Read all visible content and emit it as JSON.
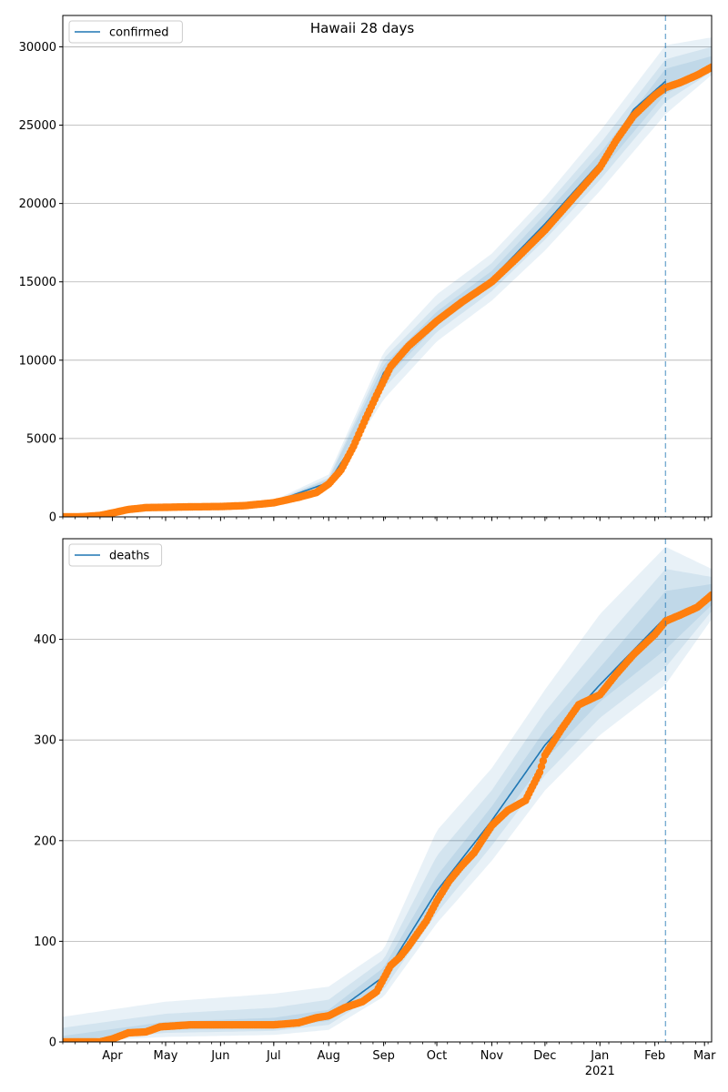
{
  "figure": {
    "title": "Hawaii 28 days"
  },
  "x_axis": {
    "start": "2020-03-04",
    "end": "2021-03-05",
    "ticks": [
      {
        "date": "2020-04-01",
        "label": "Apr"
      },
      {
        "date": "2020-05-01",
        "label": "May"
      },
      {
        "date": "2020-06-01",
        "label": "Jun"
      },
      {
        "date": "2020-07-01",
        "label": "Jul"
      },
      {
        "date": "2020-08-01",
        "label": "Aug"
      },
      {
        "date": "2020-09-01",
        "label": "Sep"
      },
      {
        "date": "2020-10-01",
        "label": "Oct"
      },
      {
        "date": "2020-11-01",
        "label": "Nov"
      },
      {
        "date": "2020-12-01",
        "label": "Dec"
      },
      {
        "date": "2021-01-01",
        "label": "Jan",
        "sublabel": "2021"
      },
      {
        "date": "2021-02-01",
        "label": "Feb"
      },
      {
        "date": "2021-03-01",
        "label": "Mar"
      }
    ]
  },
  "colors": {
    "model_line": "#1f77b4",
    "observed": "#ff7f0e",
    "band": "#1f77b4",
    "grid": "#b0b0b0",
    "forecast_line": "#1f77b4"
  },
  "chart_data": [
    {
      "type": "line",
      "legend": "confirmed",
      "legend_position": "top-left",
      "grid": "horizontal",
      "ylim": [
        0,
        32000
      ],
      "yticks": [
        0,
        5000,
        10000,
        15000,
        20000,
        25000,
        30000
      ],
      "forecast_start": "2021-02-07",
      "observed": [
        [
          "2020-03-04",
          0
        ],
        [
          "2020-03-15",
          10
        ],
        [
          "2020-03-25",
          90
        ],
        [
          "2020-04-01",
          250
        ],
        [
          "2020-04-10",
          470
        ],
        [
          "2020-04-20",
          590
        ],
        [
          "2020-05-01",
          610
        ],
        [
          "2020-05-15",
          640
        ],
        [
          "2020-06-01",
          660
        ],
        [
          "2020-06-15",
          720
        ],
        [
          "2020-07-01",
          900
        ],
        [
          "2020-07-15",
          1250
        ],
        [
          "2020-07-25",
          1550
        ],
        [
          "2020-08-01",
          2100
        ],
        [
          "2020-08-08",
          3000
        ],
        [
          "2020-08-15",
          4500
        ],
        [
          "2020-08-22",
          6300
        ],
        [
          "2020-08-29",
          8000
        ],
        [
          "2020-09-05",
          9600
        ],
        [
          "2020-09-15",
          10900
        ],
        [
          "2020-10-01",
          12500
        ],
        [
          "2020-10-15",
          13700
        ],
        [
          "2020-11-01",
          15000
        ],
        [
          "2020-11-15",
          16500
        ],
        [
          "2020-12-01",
          18300
        ],
        [
          "2020-12-15",
          20100
        ],
        [
          "2021-01-01",
          22300
        ],
        [
          "2021-01-10",
          24000
        ],
        [
          "2021-01-20",
          25600
        ],
        [
          "2021-02-01",
          26900
        ],
        [
          "2021-02-07",
          27400
        ],
        [
          "2021-02-15",
          27700
        ],
        [
          "2021-02-25",
          28200
        ],
        [
          "2021-03-05",
          28700
        ]
      ],
      "model": [
        [
          "2020-03-04",
          0
        ],
        [
          "2020-04-01",
          200
        ],
        [
          "2020-05-01",
          620
        ],
        [
          "2020-06-01",
          670
        ],
        [
          "2020-07-01",
          950
        ],
        [
          "2020-08-01",
          2200
        ],
        [
          "2020-08-15",
          4700
        ],
        [
          "2020-09-01",
          9200
        ],
        [
          "2020-09-15",
          11000
        ],
        [
          "2020-10-01",
          12600
        ],
        [
          "2020-11-01",
          15200
        ],
        [
          "2020-12-01",
          18700
        ],
        [
          "2021-01-01",
          22600
        ],
        [
          "2021-01-20",
          26000
        ],
        [
          "2021-02-07",
          27800
        ]
      ],
      "bands": [
        [
          [
            "2020-03-04",
            0,
            30
          ],
          [
            "2020-07-01",
            850,
            1050
          ],
          [
            "2020-08-01",
            1900,
            2700
          ],
          [
            "2020-09-01",
            7500,
            10500
          ],
          [
            "2020-10-01",
            11200,
            14200
          ],
          [
            "2020-11-01",
            13800,
            16800
          ],
          [
            "2020-12-01",
            17000,
            20400
          ],
          [
            "2021-01-01",
            20800,
            24600
          ],
          [
            "2021-02-07",
            25700,
            30100
          ],
          [
            "2021-03-05",
            28200,
            30600
          ]
        ],
        [
          [
            "2020-03-04",
            0,
            20
          ],
          [
            "2020-07-01",
            890,
            1000
          ],
          [
            "2020-08-01",
            2000,
            2500
          ],
          [
            "2020-09-01",
            8200,
            10100
          ],
          [
            "2020-10-01",
            11800,
            13500
          ],
          [
            "2020-11-01",
            14400,
            16200
          ],
          [
            "2020-12-01",
            17700,
            19800
          ],
          [
            "2021-01-01",
            21500,
            23800
          ],
          [
            "2021-02-07",
            26500,
            29200
          ],
          [
            "2021-03-05",
            28400,
            30000
          ]
        ],
        [
          [
            "2020-03-04",
            0,
            10
          ],
          [
            "2020-07-01",
            920,
            980
          ],
          [
            "2020-08-01",
            2100,
            2400
          ],
          [
            "2020-09-01",
            8700,
            9700
          ],
          [
            "2020-10-01",
            12200,
            13100
          ],
          [
            "2020-11-01",
            14800,
            15700
          ],
          [
            "2020-12-01",
            18200,
            19300
          ],
          [
            "2021-01-01",
            22000,
            23200
          ],
          [
            "2021-02-07",
            27000,
            28600
          ],
          [
            "2021-03-05",
            28500,
            29400
          ]
        ]
      ]
    },
    {
      "type": "line",
      "legend": "deaths",
      "legend_position": "top-left",
      "grid": "horizontal",
      "ylim": [
        0,
        500
      ],
      "yticks": [
        0,
        100,
        200,
        300,
        400
      ],
      "forecast_start": "2021-02-07",
      "observed": [
        [
          "2020-03-04",
          0
        ],
        [
          "2020-03-25",
          0
        ],
        [
          "2020-04-01",
          3
        ],
        [
          "2020-04-10",
          9
        ],
        [
          "2020-04-20",
          10
        ],
        [
          "2020-04-28",
          15
        ],
        [
          "2020-05-15",
          17
        ],
        [
          "2020-06-15",
          17
        ],
        [
          "2020-07-01",
          17
        ],
        [
          "2020-07-15",
          19
        ],
        [
          "2020-07-25",
          24
        ],
        [
          "2020-08-01",
          26
        ],
        [
          "2020-08-10",
          34
        ],
        [
          "2020-08-20",
          40
        ],
        [
          "2020-08-28",
          50
        ],
        [
          "2020-09-05",
          76
        ],
        [
          "2020-09-10",
          84
        ],
        [
          "2020-09-15",
          95
        ],
        [
          "2020-09-25",
          120
        ],
        [
          "2020-10-01",
          140
        ],
        [
          "2020-10-08",
          160
        ],
        [
          "2020-10-15",
          175
        ],
        [
          "2020-10-22",
          188
        ],
        [
          "2020-11-01",
          215
        ],
        [
          "2020-11-10",
          230
        ],
        [
          "2020-11-20",
          240
        ],
        [
          "2020-11-28",
          268
        ],
        [
          "2020-12-01",
          285
        ],
        [
          "2020-12-10",
          310
        ],
        [
          "2020-12-20",
          335
        ],
        [
          "2021-01-01",
          345
        ],
        [
          "2021-01-10",
          365
        ],
        [
          "2021-01-20",
          385
        ],
        [
          "2021-02-01",
          405
        ],
        [
          "2021-02-07",
          418
        ],
        [
          "2021-02-15",
          424
        ],
        [
          "2021-02-25",
          432
        ],
        [
          "2021-03-05",
          444
        ]
      ],
      "model": [
        [
          "2020-03-04",
          0
        ],
        [
          "2020-04-01",
          4
        ],
        [
          "2020-05-01",
          14
        ],
        [
          "2020-06-01",
          17
        ],
        [
          "2020-07-01",
          17
        ],
        [
          "2020-08-01",
          25
        ],
        [
          "2020-09-01",
          65
        ],
        [
          "2020-10-01",
          150
        ],
        [
          "2020-11-01",
          220
        ],
        [
          "2020-12-01",
          295
        ],
        [
          "2021-01-01",
          355
        ],
        [
          "2021-02-07",
          422
        ]
      ],
      "bands": [
        [
          [
            "2020-03-04",
            0,
            25
          ],
          [
            "2020-05-01",
            5,
            40
          ],
          [
            "2020-07-01",
            7,
            48
          ],
          [
            "2020-08-01",
            12,
            55
          ],
          [
            "2020-09-01",
            45,
            92
          ],
          [
            "2020-10-01",
            118,
            210
          ],
          [
            "2020-11-01",
            180,
            272
          ],
          [
            "2020-12-01",
            250,
            350
          ],
          [
            "2021-01-01",
            305,
            425
          ],
          [
            "2021-02-07",
            355,
            492
          ],
          [
            "2021-03-05",
            420,
            470
          ]
        ],
        [
          [
            "2020-03-04",
            0,
            14
          ],
          [
            "2020-05-01",
            9,
            28
          ],
          [
            "2020-07-01",
            11,
            34
          ],
          [
            "2020-08-01",
            17,
            42
          ],
          [
            "2020-09-01",
            52,
            82
          ],
          [
            "2020-10-01",
            128,
            185
          ],
          [
            "2020-11-01",
            195,
            250
          ],
          [
            "2020-12-01",
            265,
            328
          ],
          [
            "2021-01-01",
            322,
            395
          ],
          [
            "2021-02-07",
            372,
            470
          ],
          [
            "2021-03-05",
            428,
            462
          ]
        ],
        [
          [
            "2020-03-04",
            0,
            6
          ],
          [
            "2020-05-01",
            12,
            20
          ],
          [
            "2020-07-01",
            14,
            24
          ],
          [
            "2020-08-01",
            21,
            32
          ],
          [
            "2020-09-01",
            58,
            74
          ],
          [
            "2020-10-01",
            138,
            165
          ],
          [
            "2020-11-01",
            208,
            234
          ],
          [
            "2020-12-01",
            280,
            310
          ],
          [
            "2021-01-01",
            338,
            372
          ],
          [
            "2021-02-07",
            390,
            448
          ],
          [
            "2021-03-05",
            434,
            455
          ]
        ]
      ]
    }
  ]
}
